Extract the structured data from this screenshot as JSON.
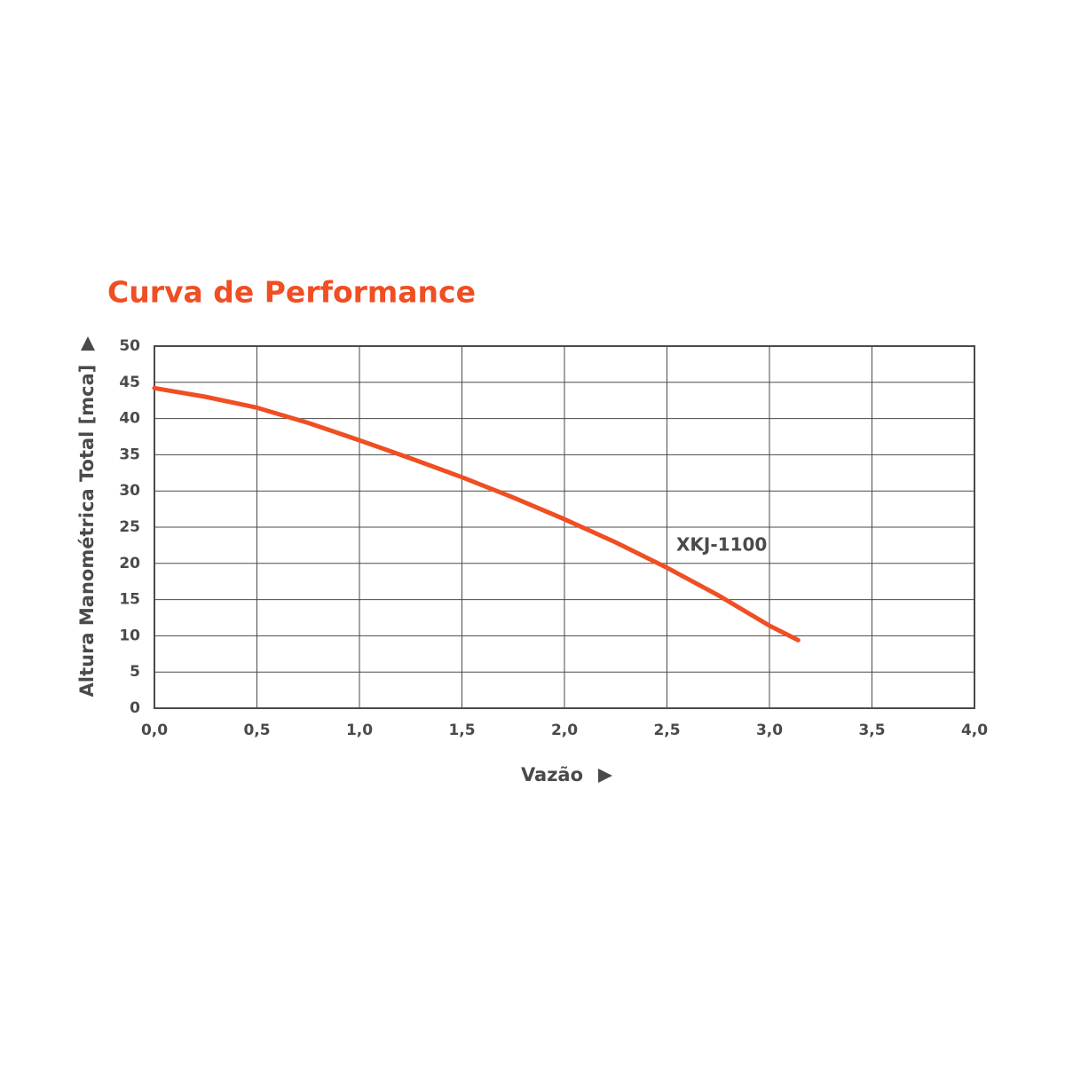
{
  "chart_data": {
    "type": "line",
    "title": "Curva de Performance",
    "x_label": "Vazão",
    "y_label": "Altura Manométrica Total [mca]",
    "x": [
      0,
      0.25,
      0.5,
      0.75,
      1.0,
      1.25,
      1.5,
      1.75,
      2.0,
      2.25,
      2.5,
      2.75,
      3.0,
      3.14
    ],
    "series": [
      {
        "name": "XKJ-1100",
        "color": "#f04e23",
        "values": [
          44.2,
          43.0,
          41.5,
          39.4,
          37.0,
          34.5,
          31.9,
          29.1,
          26.1,
          22.9,
          19.4,
          15.6,
          11.4,
          9.4
        ]
      }
    ],
    "xlim": [
      0,
      4
    ],
    "xticks": [
      {
        "value": 0,
        "label": "0,0"
      },
      {
        "value": 0.5,
        "label": "0,5"
      },
      {
        "value": 1,
        "label": "1,0"
      },
      {
        "value": 1.5,
        "label": "1,5"
      },
      {
        "value": 2,
        "label": "2,0"
      },
      {
        "value": 2.5,
        "label": "2,5"
      },
      {
        "value": 3,
        "label": "3,0"
      },
      {
        "value": 3.5,
        "label": "3,5"
      },
      {
        "value": 4,
        "label": "4,0"
      }
    ],
    "ylim": [
      0,
      50
    ],
    "yticks": [
      0,
      5,
      10,
      15,
      20,
      25,
      30,
      35,
      40,
      45,
      50
    ],
    "grid": true
  }
}
